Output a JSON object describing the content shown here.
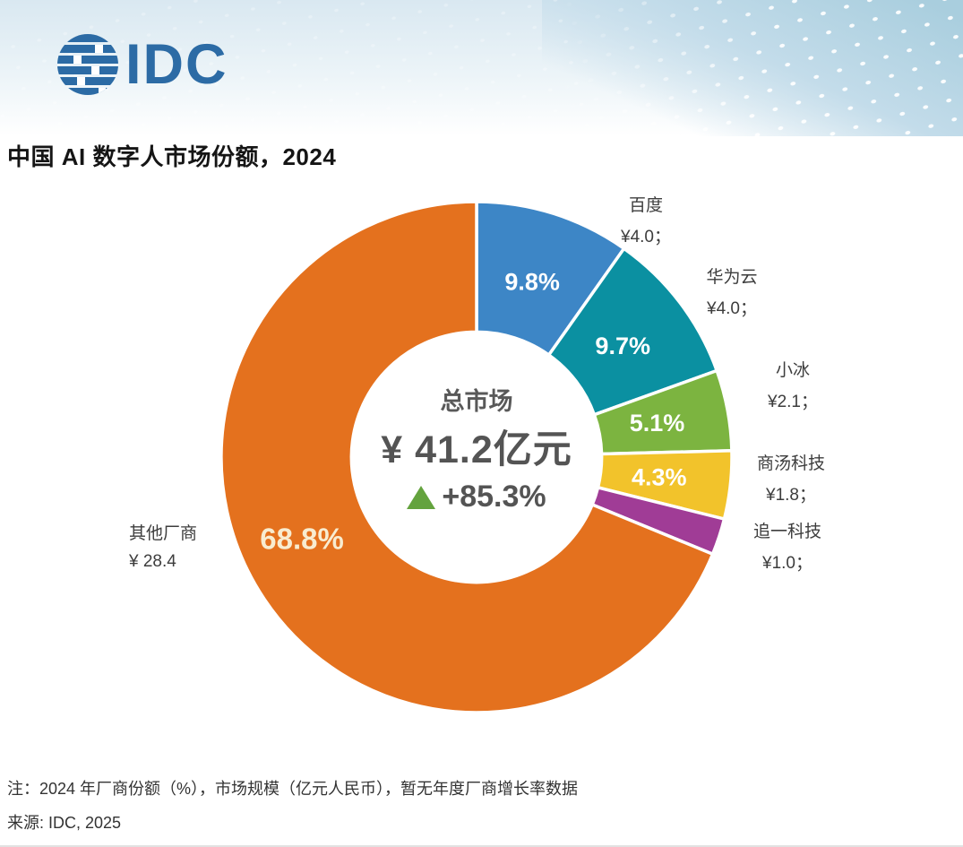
{
  "header": {
    "logo_text": "IDC",
    "brand_color": "#2c6ba5",
    "title": "中国 AI 数字人市场份额，2024"
  },
  "chart_data": {
    "type": "pie",
    "subtype": "donut",
    "title": "中国 AI 数字人市场份额，2024",
    "unit": "亿元人民币",
    "total_market_billion_cny": 41.2,
    "yoy_growth_pct": 85.3,
    "start_angle_deg": 0,
    "direction": "clockwise",
    "donut_hole_ratio": 0.49,
    "center": {
      "label": "总市场",
      "value": "¥ 41.2亿元",
      "growth": "+85.3%",
      "growth_color": "#64a33e"
    },
    "segments": [
      {
        "key": "baidu",
        "name": "百度",
        "share_pct": 9.8,
        "value_billion_cny": 4.0,
        "value_label": "¥4.0；",
        "pct_label": "9.8%",
        "color": "#3d86c6",
        "pct_color": "#ffffff"
      },
      {
        "key": "huawei-cloud",
        "name": "华为云",
        "share_pct": 9.7,
        "value_billion_cny": 4.0,
        "value_label": "¥4.0；",
        "pct_label": "9.7%",
        "color": "#0b90a1",
        "pct_color": "#ffffff"
      },
      {
        "key": "xiaoice",
        "name": "小冰",
        "share_pct": 5.1,
        "value_billion_cny": 2.1,
        "value_label": "¥2.1；",
        "pct_label": "5.1%",
        "color": "#7cb440",
        "pct_color": "#ffffff"
      },
      {
        "key": "sensetime",
        "name": "商汤科技",
        "share_pct": 4.3,
        "value_billion_cny": 1.8,
        "value_label": "¥1.8；",
        "pct_label": "4.3%",
        "color": "#f2c32b",
        "pct_color": "#ffffff"
      },
      {
        "key": "zhuiyi",
        "name": "追一科技",
        "share_pct": 2.3,
        "value_billion_cny": 1.0,
        "value_label": "¥1.0；",
        "pct_label": "",
        "color": "#a03c96",
        "pct_color": "#ffffff"
      },
      {
        "key": "other-vendors",
        "name": "其他厂商",
        "share_pct": 68.8,
        "value_billion_cny": 28.4,
        "value_label": "¥ 28.4",
        "pct_label": "68.8%",
        "color": "#e4711e",
        "pct_color": "#f8ecd0"
      }
    ]
  },
  "footer": {
    "note": "注：2024 年厂商份额（%），市场规模（亿元人民币），暂无年度厂商增长率数据",
    "source": "来源: IDC, 2025"
  }
}
